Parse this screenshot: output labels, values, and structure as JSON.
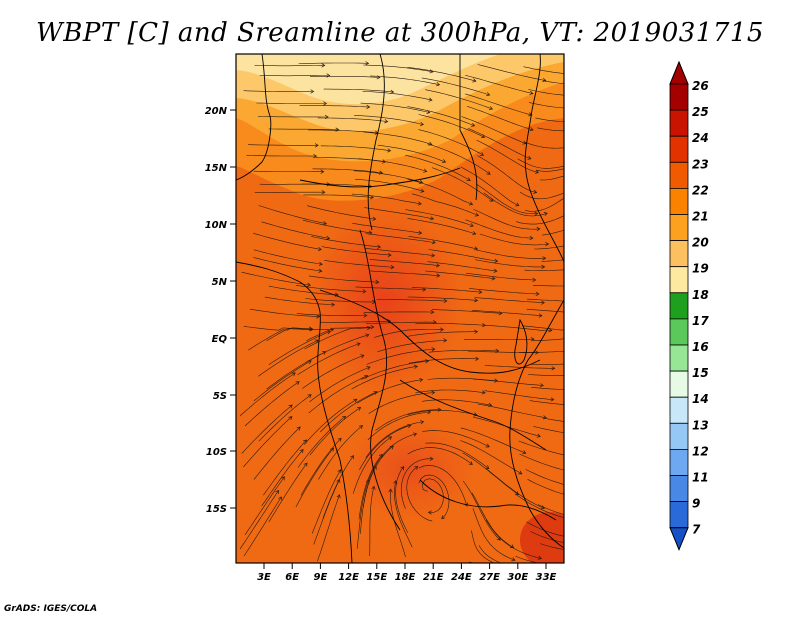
{
  "title": "WBPT [C] and Sreamline at 300hPa, VT: 2019031715",
  "credit": "GrADS: IGES/COLA",
  "map": {
    "lat_labels": [
      "20N",
      "15N",
      "10N",
      "5N",
      "EQ",
      "5S",
      "10S",
      "15S"
    ],
    "lon_labels": [
      "3E",
      "6E",
      "9E",
      "12E",
      "15E",
      "18E",
      "21E",
      "24E",
      "27E",
      "30E",
      "33E"
    ]
  },
  "colorbar": {
    "levels": [
      "26",
      "25",
      "24",
      "23",
      "22",
      "21",
      "20",
      "19",
      "18",
      "17",
      "16",
      "15",
      "14",
      "13",
      "12",
      "11",
      "9",
      "7"
    ],
    "colors": [
      "#a50000",
      "#c81400",
      "#e13200",
      "#f05a00",
      "#fa8200",
      "#fca020",
      "#fcc060",
      "#fde9a0",
      "#1ea01e",
      "#5ac85a",
      "#96e696",
      "#e6fae6",
      "#c8e8fa",
      "#96c8f5",
      "#6ea8f0",
      "#4a88e6",
      "#2a6ad8",
      "#1450c8"
    ]
  }
}
